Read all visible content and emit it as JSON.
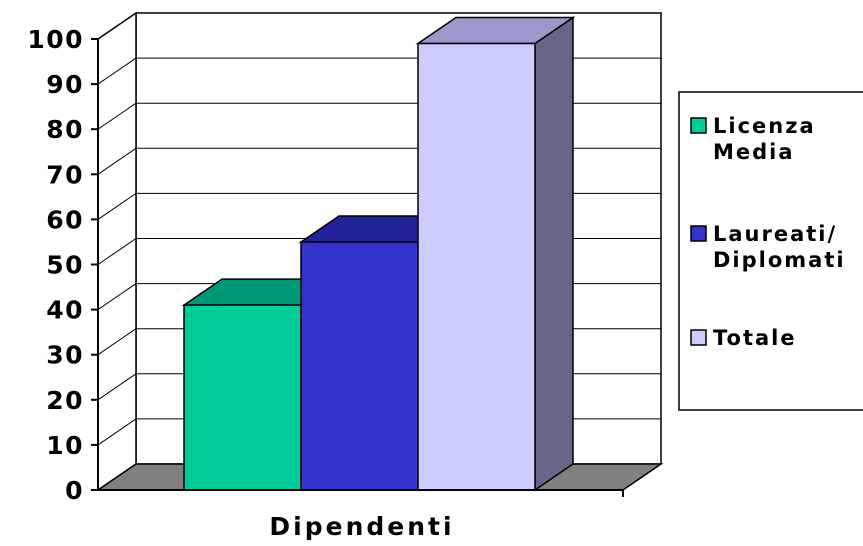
{
  "chart_data": {
    "type": "bar",
    "categories": [
      "Dipendenti"
    ],
    "series": [
      {
        "name": "Licenza Media",
        "label_lines": [
          "Licenza",
          "Media"
        ],
        "values": [
          41
        ]
      },
      {
        "name": "Laureati/ Diplomati",
        "label_lines": [
          "Laureati/",
          "Diplomati"
        ],
        "values": [
          55
        ]
      },
      {
        "name": "Totale",
        "label_lines": [
          "Totale"
        ],
        "values": [
          99
        ]
      }
    ],
    "ylim": [
      0,
      100
    ],
    "yticks": [
      "0",
      "10",
      "20",
      "30",
      "40",
      "50",
      "60",
      "70",
      "80",
      "90",
      "100"
    ],
    "grid": true,
    "legend": "right",
    "three_d": true
  },
  "colors": {
    "series": [
      {
        "front": "#00cc99",
        "top": "#009977",
        "side": "#007755"
      },
      {
        "front": "#3333cc",
        "top": "#222299",
        "side": "#1a1a77"
      },
      {
        "front": "#ccccff",
        "top": "#9999cc",
        "side": "#666688"
      }
    ],
    "floor": "#808080",
    "grid": "#000000"
  }
}
